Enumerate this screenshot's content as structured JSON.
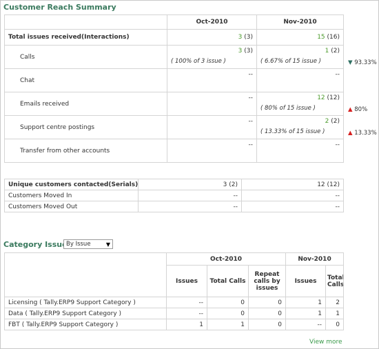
{
  "reach": {
    "title": "Customer Reach Summary",
    "months": [
      "Oct-2010",
      "Nov-2010"
    ],
    "total": {
      "label": "Total issues received(Interactions)",
      "oct_value": "3",
      "oct_paren": "(3)",
      "nov_value": "15",
      "nov_paren": "(16)"
    },
    "rows": [
      {
        "label": "Calls",
        "oct_value": "3",
        "oct_paren": "(3)",
        "oct_sub": "( 100% of 3 issue )",
        "nov_value": "1",
        "nov_paren": "(2)",
        "nov_sub": "( 6.67% of 15 issue )",
        "trend_arrow": "▼",
        "trend_value": "93.33%",
        "trend_dir": "down"
      },
      {
        "label": "Chat",
        "oct_value": "--",
        "oct_paren": "",
        "oct_sub": "",
        "nov_value": "--",
        "nov_paren": "",
        "nov_sub": "",
        "trend_arrow": "",
        "trend_value": "",
        "trend_dir": ""
      },
      {
        "label": "Emails received",
        "oct_value": "--",
        "oct_paren": "",
        "oct_sub": "",
        "nov_value": "12",
        "nov_paren": "(12)",
        "nov_sub": "( 80% of 15 issue )",
        "trend_arrow": "▲",
        "trend_value": "80%",
        "trend_dir": "up"
      },
      {
        "label": "Support centre postings",
        "oct_value": "--",
        "oct_paren": "",
        "oct_sub": "",
        "nov_value": "2",
        "nov_paren": "(2)",
        "nov_sub": "( 13.33% of 15 issue )",
        "trend_arrow": "▲",
        "trend_value": "13.33%",
        "trend_dir": "up"
      },
      {
        "label": "Transfer from other accounts",
        "oct_value": "--",
        "oct_paren": "",
        "oct_sub": "",
        "nov_value": "--",
        "nov_paren": "",
        "nov_sub": "",
        "trend_arrow": "",
        "trend_value": "",
        "trend_dir": ""
      }
    ]
  },
  "unique": {
    "header": {
      "label": "Unique customers contacted(Serials)",
      "oct": "3 (2)",
      "nov": "12 (12)"
    },
    "rows": [
      {
        "label": "Customers Moved In",
        "oct": "--",
        "nov": "--"
      },
      {
        "label": "Customers Moved Out",
        "oct": "--",
        "nov": "--"
      }
    ]
  },
  "category": {
    "title": "Category Issues",
    "select_value": "By Issue",
    "months": [
      "Oct-2010",
      "Nov-2010"
    ],
    "columns": [
      "Issues",
      "Total Calls",
      "Repeat calls by issues",
      "Issues",
      "Total Calls"
    ],
    "rows": [
      {
        "label": "Licensing ( Tally.ERP9 Support Category )",
        "values": [
          "--",
          "0",
          "0",
          "1",
          "2"
        ]
      },
      {
        "label": "Data ( Tally.ERP9 Support Category )",
        "values": [
          "--",
          "0",
          "0",
          "1",
          "1"
        ]
      },
      {
        "label": "FBT ( Tally.ERP9 Support Category )",
        "values": [
          "1",
          "1",
          "0",
          "--",
          "0"
        ]
      }
    ],
    "view_more": "View more"
  },
  "colors": {
    "title": "#3a7a5e",
    "value_green": "#4a9a2a",
    "trend_up": "#d62020",
    "trend_down": "#2f6f62",
    "link": "#3a9a4a"
  }
}
